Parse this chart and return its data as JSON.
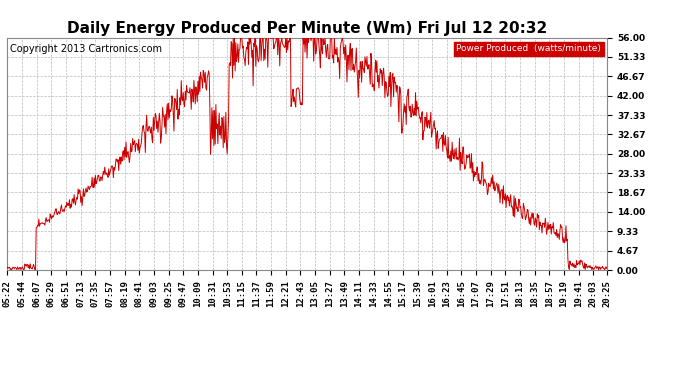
{
  "title": "Daily Energy Produced Per Minute (Wm) Fri Jul 12 20:32",
  "copyright": "Copyright 2013 Cartronics.com",
  "legend_label": "Power Produced  (watts/minute)",
  "legend_bg": "#cc0000",
  "legend_text_color": "#ffffff",
  "line_color": "#cc0000",
  "bg_color": "#ffffff",
  "plot_bg_color": "#ffffff",
  "grid_color": "#bbbbbb",
  "ylim": [
    0,
    56.0
  ],
  "yticks": [
    0.0,
    4.67,
    9.33,
    14.0,
    18.67,
    23.33,
    28.0,
    32.67,
    37.33,
    42.0,
    46.67,
    51.33,
    56.0
  ],
  "ytick_labels": [
    "0.00",
    "4.67",
    "9.33",
    "14.00",
    "18.67",
    "23.33",
    "28.00",
    "32.67",
    "37.33",
    "42.00",
    "46.67",
    "51.33",
    "56.00"
  ],
  "xtick_labels": [
    "05:22",
    "05:44",
    "06:07",
    "06:29",
    "06:51",
    "07:13",
    "07:35",
    "07:57",
    "08:19",
    "08:41",
    "09:03",
    "09:25",
    "09:47",
    "10:09",
    "10:31",
    "10:53",
    "11:15",
    "11:37",
    "11:59",
    "12:21",
    "12:43",
    "13:05",
    "13:27",
    "13:49",
    "14:11",
    "14:33",
    "14:55",
    "15:17",
    "15:39",
    "16:01",
    "16:23",
    "16:45",
    "17:07",
    "17:29",
    "17:51",
    "18:13",
    "18:35",
    "18:57",
    "19:19",
    "19:41",
    "20:03",
    "20:25"
  ],
  "title_fontsize": 11,
  "tick_fontsize": 6.5,
  "copyright_fontsize": 7
}
